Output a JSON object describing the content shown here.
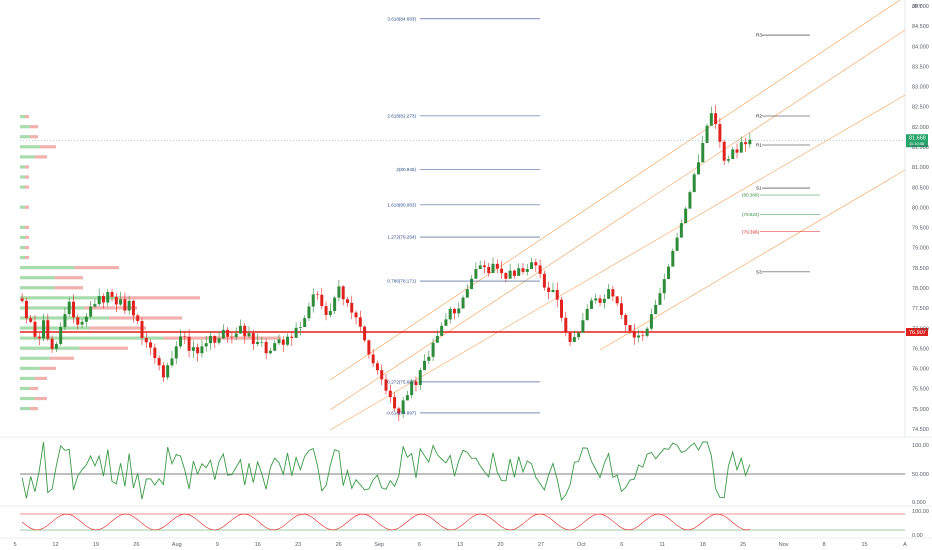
{
  "chart_data": {
    "type": "candlestick",
    "symbol": "JPY",
    "price_axis": {
      "ticks": [
        "85.000",
        "84.500",
        "84.000",
        "83.500",
        "83.000",
        "82.500",
        "82.000",
        "81.500",
        "81.000",
        "80.500",
        "80.000",
        "79.500",
        "79.000",
        "78.500",
        "78.000",
        "77.500",
        "77.000",
        "76.500",
        "76.000",
        "75.500",
        "75.000",
        "74.500"
      ],
      "range": [
        74.3,
        85.15
      ]
    },
    "time_axis": {
      "labels": [
        "5",
        "12",
        "19",
        "26",
        "Aug",
        "9",
        "16",
        "23",
        "26",
        "Sep",
        "6",
        "13",
        "20",
        "27",
        "Oct",
        "6",
        "11",
        "18",
        "25",
        "Nov",
        "8",
        "15",
        "A"
      ]
    },
    "current_price": {
      "value": "81.668",
      "sub": "11:10:58",
      "color": "#27a36b"
    },
    "horizontal_line": {
      "value": "76.907",
      "color": "#e0221f"
    },
    "fib_levels": [
      {
        "label": "3.618(84.683)",
        "value": 84.683
      },
      {
        "label": "2.618(82.273)",
        "value": 82.273
      },
      {
        "label": "2(80.945)",
        "value": 80.945
      },
      {
        "label": "1.618(80.063)",
        "value": 80.063
      },
      {
        "label": "1.272(79.264)",
        "value": 79.264
      },
      {
        "label": "0.786(78.171)",
        "value": 78.171
      },
      {
        "label": "-0.272(75.667)",
        "value": 75.667
      },
      {
        "label": "-0.618(74.897)",
        "value": 74.897
      }
    ],
    "pivot_levels": [
      {
        "label": "R3",
        "value": 84.28
      },
      {
        "label": "R2",
        "value": 82.27
      },
      {
        "label": "R1",
        "value": 81.55
      },
      {
        "label": "S1",
        "value": 80.48
      },
      {
        "label": "S3",
        "value": 78.4
      }
    ],
    "level_labels": [
      {
        "label": "(80.308)",
        "value": 80.308,
        "color": "#2e8b3a"
      },
      {
        "label": "(79.824)",
        "value": 79.824,
        "color": "#2e8b3a"
      },
      {
        "label": "(79.396)",
        "value": 79.396,
        "color": "#e0221f"
      }
    ],
    "candles": [
      [
        77.74,
        77.68,
        77.87,
        77.63
      ],
      [
        77.68,
        77.25,
        77.75,
        77.12
      ],
      [
        77.25,
        77.16,
        77.33,
        77.13
      ],
      [
        77.16,
        76.79,
        77.33,
        76.73
      ],
      [
        76.79,
        76.75,
        76.88,
        76.58
      ],
      [
        76.75,
        77.2,
        77.36,
        76.68
      ],
      [
        77.2,
        76.74,
        77.36,
        76.68
      ],
      [
        76.74,
        76.49,
        76.82,
        76.39
      ],
      [
        76.49,
        76.61,
        76.67,
        76.41
      ],
      [
        76.61,
        77.03,
        77.15,
        76.56
      ],
      [
        77.03,
        77.35,
        77.51,
        76.95
      ],
      [
        77.35,
        77.66,
        77.76,
        77.29
      ],
      [
        77.66,
        77.27,
        77.84,
        77.12
      ],
      [
        77.27,
        77.09,
        77.34,
        76.97
      ],
      [
        77.09,
        77.16,
        77.24,
        77.0
      ],
      [
        77.16,
        77.29,
        77.38,
        77.04
      ],
      [
        77.29,
        77.54,
        77.68,
        77.25
      ],
      [
        77.54,
        77.6,
        77.73,
        77.51
      ],
      [
        77.6,
        77.8,
        77.99,
        77.55
      ],
      [
        77.8,
        77.64,
        77.87,
        77.5
      ],
      [
        77.64,
        77.9,
        77.97,
        77.55
      ],
      [
        77.9,
        77.78,
        77.98,
        77.66
      ],
      [
        77.78,
        77.59,
        77.87,
        77.4
      ],
      [
        77.59,
        77.72,
        77.91,
        77.55
      ],
      [
        77.72,
        77.44,
        77.88,
        77.35
      ],
      [
        77.44,
        77.68,
        77.81,
        77.34
      ],
      [
        77.68,
        77.32,
        77.71,
        77.15
      ],
      [
        77.32,
        77.18,
        77.36,
        77.1
      ],
      [
        77.18,
        76.76,
        77.25,
        76.58
      ],
      [
        76.76,
        76.65,
        76.91,
        76.51
      ],
      [
        76.65,
        76.52,
        76.72,
        76.33
      ],
      [
        76.52,
        76.26,
        76.62,
        76.12
      ],
      [
        76.26,
        76.08,
        76.33,
        75.95
      ],
      [
        76.08,
        75.78,
        76.16,
        75.67
      ],
      [
        75.78,
        76.08,
        76.14,
        75.72
      ],
      [
        76.08,
        76.25,
        76.44,
        76.03
      ],
      [
        76.25,
        76.55,
        76.68,
        76.11
      ],
      [
        76.55,
        76.8,
        76.97,
        76.49
      ],
      [
        76.8,
        76.79,
        76.93,
        76.61
      ],
      [
        76.79,
        76.44,
        76.98,
        76.27
      ],
      [
        76.44,
        76.53,
        76.7,
        76.26
      ],
      [
        76.53,
        76.38,
        76.62,
        76.17
      ],
      [
        76.38,
        76.55,
        76.71,
        76.27
      ],
      [
        76.55,
        76.63,
        76.81,
        76.42
      ],
      [
        76.63,
        76.81,
        76.91,
        76.47
      ],
      [
        76.81,
        76.64,
        76.82,
        76.51
      ],
      [
        76.64,
        76.75,
        76.92,
        76.59
      ],
      [
        76.75,
        76.96,
        77.1,
        76.73
      ],
      [
        76.96,
        76.79,
        77.03,
        76.64
      ],
      [
        76.79,
        76.78,
        76.9,
        76.62
      ],
      [
        76.78,
        76.87,
        77.02,
        76.7
      ],
      [
        76.87,
        77.06,
        77.22,
        76.86
      ],
      [
        77.06,
        76.8,
        77.13,
        76.62
      ],
      [
        76.8,
        76.88,
        77.05,
        76.76
      ],
      [
        76.88,
        76.61,
        76.95,
        76.46
      ],
      [
        76.61,
        76.66,
        76.87,
        76.55
      ],
      [
        76.66,
        76.66,
        76.79,
        76.53
      ],
      [
        76.66,
        76.38,
        76.74,
        76.23
      ],
      [
        76.38,
        76.44,
        76.52,
        76.35
      ],
      [
        76.44,
        76.63,
        76.7,
        76.56
      ],
      [
        76.63,
        76.72,
        76.85,
        76.58
      ],
      [
        76.72,
        76.59,
        76.8,
        76.41
      ],
      [
        76.59,
        76.79,
        76.87,
        76.55
      ],
      [
        76.79,
        76.76,
        76.93,
        76.56
      ],
      [
        76.76,
        77.01,
        77.15,
        76.84
      ],
      [
        77.01,
        77.03,
        77.16,
        76.82
      ],
      [
        77.03,
        77.25,
        77.32,
        77.11
      ],
      [
        77.25,
        77.54,
        77.64,
        77.18
      ],
      [
        77.54,
        77.84,
        77.99,
        77.39
      ],
      [
        77.84,
        77.83,
        77.92,
        77.71
      ],
      [
        77.83,
        77.55,
        78.0,
        77.48
      ],
      [
        77.55,
        77.33,
        77.66,
        77.2
      ],
      [
        77.33,
        77.43,
        77.62,
        77.27
      ],
      [
        77.43,
        77.76,
        77.81,
        77.36
      ],
      [
        77.76,
        78.04,
        78.2,
        77.66
      ],
      [
        78.04,
        77.72,
        78.07,
        77.57
      ],
      [
        77.72,
        77.63,
        77.78,
        77.53
      ],
      [
        77.63,
        77.39,
        77.81,
        77.23
      ],
      [
        77.39,
        77.27,
        77.44,
        77.1
      ],
      [
        77.27,
        77.04,
        77.43,
        76.92
      ],
      [
        77.04,
        76.7,
        77.07,
        76.65
      ],
      [
        76.7,
        76.35,
        76.72,
        76.25
      ],
      [
        76.35,
        76.13,
        76.48,
        76.04
      ],
      [
        76.13,
        75.96,
        76.2,
        75.85
      ],
      [
        75.96,
        75.73,
        76.1,
        75.59
      ],
      [
        75.73,
        75.45,
        75.86,
        75.36
      ],
      [
        75.45,
        75.29,
        75.6,
        75.14
      ],
      [
        75.29,
        75.01,
        75.41,
        74.94
      ],
      [
        75.01,
        74.88,
        75.05,
        74.69
      ],
      [
        74.88,
        75.21,
        75.3,
        74.77
      ],
      [
        75.21,
        75.34,
        75.45,
        75.27
      ],
      [
        75.34,
        75.68,
        75.74,
        75.26
      ],
      [
        75.68,
        75.59,
        75.8,
        75.43
      ],
      [
        75.59,
        75.96,
        76.02,
        75.46
      ],
      [
        75.96,
        76.19,
        76.36,
        76.05
      ],
      [
        76.19,
        76.29,
        76.45,
        76.11
      ],
      [
        76.29,
        76.64,
        76.75,
        76.19
      ],
      [
        76.64,
        76.81,
        76.95,
        76.69
      ],
      [
        76.81,
        77.06,
        77.15,
        76.86
      ],
      [
        77.06,
        77.22,
        77.37,
        77.12
      ],
      [
        77.22,
        77.48,
        77.54,
        77.12
      ],
      [
        77.48,
        77.37,
        77.51,
        77.22
      ],
      [
        77.37,
        77.49,
        77.64,
        77.27
      ],
      [
        77.49,
        77.76,
        77.82,
        77.69
      ],
      [
        77.76,
        77.97,
        78.09,
        77.82
      ],
      [
        77.97,
        78.23,
        78.32,
        78.09
      ],
      [
        78.23,
        78.47,
        78.64,
        78.31
      ],
      [
        78.47,
        78.56,
        78.68,
        78.5
      ],
      [
        78.56,
        78.52,
        78.68,
        78.36
      ],
      [
        78.52,
        78.37,
        78.62,
        78.28
      ],
      [
        78.37,
        78.6,
        78.76,
        78.41
      ],
      [
        78.6,
        78.48,
        78.71,
        78.37
      ],
      [
        78.48,
        78.37,
        78.67,
        78.23
      ],
      [
        78.37,
        78.23,
        78.4,
        78.14
      ],
      [
        78.23,
        78.43,
        78.6,
        78.25
      ],
      [
        78.43,
        78.3,
        78.46,
        78.23
      ],
      [
        78.3,
        78.49,
        78.61,
        78.32
      ],
      [
        78.49,
        78.4,
        78.62,
        78.33
      ],
      [
        78.4,
        78.47,
        78.6,
        78.31
      ],
      [
        78.47,
        78.64,
        78.75,
        78.57
      ],
      [
        78.64,
        78.56,
        78.72,
        78.4
      ],
      [
        78.56,
        78.35,
        78.71,
        78.24
      ],
      [
        78.35,
        78.01,
        78.43,
        77.93
      ],
      [
        78.01,
        77.9,
        78.15,
        77.72
      ],
      [
        77.9,
        77.95,
        78.13,
        77.88
      ],
      [
        77.95,
        77.71,
        78.14,
        77.52
      ],
      [
        77.71,
        77.26,
        77.78,
        77.17
      ],
      [
        77.26,
        76.89,
        77.41,
        76.8
      ],
      [
        76.89,
        76.66,
        76.91,
        76.56
      ],
      [
        76.66,
        76.78,
        76.94,
        76.7
      ],
      [
        76.78,
        76.89,
        76.92,
        76.71
      ],
      [
        76.89,
        77.2,
        77.38,
        77.01
      ],
      [
        77.2,
        77.48,
        77.6,
        77.39
      ],
      [
        77.48,
        77.69,
        77.76,
        77.51
      ],
      [
        77.69,
        77.74,
        77.86,
        77.61
      ],
      [
        77.74,
        77.63,
        77.83,
        77.55
      ],
      [
        77.63,
        77.73,
        77.85,
        77.49
      ],
      [
        77.73,
        77.97,
        78.1,
        77.83
      ],
      [
        77.97,
        77.79,
        78.05,
        77.67
      ],
      [
        77.79,
        77.62,
        77.8,
        77.55
      ],
      [
        77.62,
        77.33,
        77.79,
        77.23
      ],
      [
        77.33,
        77.08,
        77.38,
        76.91
      ],
      [
        77.08,
        76.93,
        77.03,
        76.86
      ],
      [
        76.93,
        76.77,
        77.11,
        76.59
      ],
      [
        76.77,
        76.82,
        76.97,
        76.65
      ],
      [
        76.82,
        76.81,
        76.94,
        76.68
      ],
      [
        76.81,
        76.99,
        77.04,
        76.78
      ],
      [
        76.99,
        77.35,
        77.49,
        76.94
      ],
      [
        77.35,
        77.58,
        77.71,
        77.43
      ],
      [
        77.58,
        77.87,
        78.01,
        77.67
      ],
      [
        77.87,
        78.22,
        78.36,
        77.71
      ],
      [
        78.22,
        78.53,
        78.6,
        78.47
      ],
      [
        78.53,
        78.92,
        78.98,
        78.86
      ],
      [
        78.92,
        79.25,
        79.37,
        79.03
      ],
      [
        79.25,
        79.61,
        79.7,
        79.51
      ],
      [
        79.61,
        79.97,
        80.02,
        79.91
      ],
      [
        79.97,
        80.38,
        80.43,
        80.28
      ],
      [
        80.38,
        80.82,
        80.87,
        80.66
      ],
      [
        80.82,
        81.12,
        81.32,
        81.0
      ],
      [
        81.12,
        81.6,
        81.78,
        81.47
      ],
      [
        81.6,
        82.03,
        82.08,
        81.86
      ],
      [
        82.03,
        82.34,
        82.51,
        82.28
      ],
      [
        82.34,
        82.07,
        82.54,
        81.95
      ],
      [
        82.07,
        81.63,
        82.23,
        81.48
      ],
      [
        81.63,
        81.16,
        81.68,
        81.05
      ],
      [
        81.16,
        81.2,
        81.29,
        81.1
      ],
      [
        81.2,
        81.44,
        81.5,
        81.32
      ],
      [
        81.44,
        81.36,
        81.59,
        81.22
      ],
      [
        81.36,
        81.62,
        81.76,
        81.45
      ],
      [
        81.62,
        81.57,
        81.73,
        81.38
      ],
      [
        81.57,
        81.68,
        81.85,
        81.48
      ]
    ],
    "rsi_panel": {
      "ticks": [
        "100.00",
        "50.000",
        "0.000"
      ]
    },
    "stoch_panel": {
      "ticks": [
        "100.00",
        "0.00"
      ]
    }
  }
}
